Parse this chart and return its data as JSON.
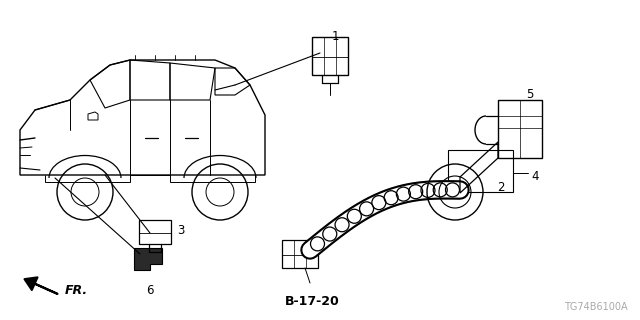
{
  "bg_color": "#ffffff",
  "diagram_code": "TG74B6100A",
  "ref_code": "B-17-20",
  "label_fontsize": 8.5,
  "small_fontsize": 7
}
